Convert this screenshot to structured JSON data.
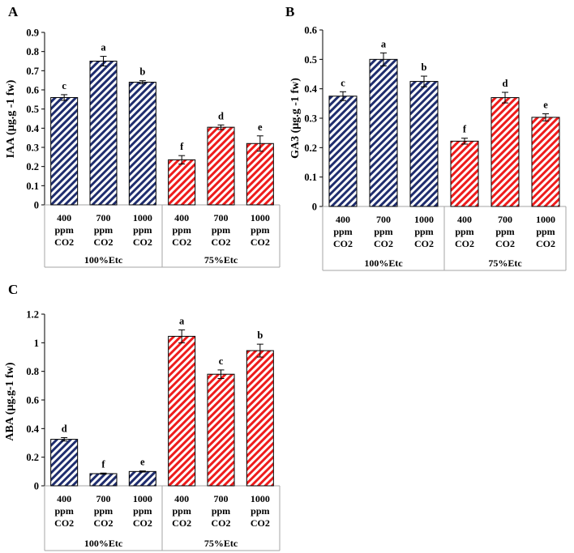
{
  "chart_data": [
    {
      "type": "bar",
      "panel_label": "A",
      "ylabel": "IAA (µg.g -1 fw)",
      "ylim": [
        0,
        0.9
      ],
      "yticks": [
        "0",
        "0.1",
        "0.2",
        "0.3",
        "0.4",
        "0.5",
        "0.6",
        "0.7",
        "0.8",
        "0.9"
      ],
      "categories": [
        [
          "400",
          "ppm",
          "CO2"
        ],
        [
          "700",
          "ppm",
          "CO2"
        ],
        [
          "1000",
          "ppm",
          "CO2"
        ],
        [
          "400",
          "ppm",
          "CO2"
        ],
        [
          "700",
          "ppm",
          "CO2"
        ],
        [
          "1000",
          "ppm",
          "CO2"
        ]
      ],
      "groups": [
        "100%Etc",
        "75%Etc"
      ],
      "values": [
        0.56,
        0.75,
        0.64,
        0.235,
        0.405,
        0.32
      ],
      "errors": [
        0.015,
        0.025,
        0.008,
        0.022,
        0.012,
        0.04
      ],
      "significance": [
        "c",
        "a",
        "b",
        "f",
        "d",
        "e"
      ],
      "series_colors": [
        "#1f2d6e",
        "#1f2d6e",
        "#1f2d6e",
        "#ee1c1c",
        "#ee1c1c",
        "#ee1c1c"
      ]
    },
    {
      "type": "bar",
      "panel_label": "B",
      "ylabel": "GA3 (µg.g -1 fw)",
      "ylim": [
        0,
        0.6
      ],
      "yticks": [
        "0",
        "0.1",
        "0.2",
        "0.3",
        "0.4",
        "0.5",
        "0.6"
      ],
      "categories": [
        [
          "400",
          "ppm",
          "CO2"
        ],
        [
          "700",
          "ppm",
          "CO2"
        ],
        [
          "1000",
          "ppm",
          "CO2"
        ],
        [
          "400",
          "ppm",
          "CO2"
        ],
        [
          "700",
          "ppm",
          "CO2"
        ],
        [
          "1000",
          "ppm",
          "CO2"
        ]
      ],
      "groups": [
        "100%Etc",
        "75%Etc"
      ],
      "values": [
        0.375,
        0.5,
        0.425,
        0.222,
        0.37,
        0.303
      ],
      "errors": [
        0.015,
        0.022,
        0.018,
        0.01,
        0.018,
        0.012
      ],
      "significance": [
        "c",
        "a",
        "b",
        "f",
        "d",
        "e"
      ],
      "series_colors": [
        "#1f2d6e",
        "#1f2d6e",
        "#1f2d6e",
        "#ee1c1c",
        "#ee1c1c",
        "#ee1c1c"
      ]
    },
    {
      "type": "bar",
      "panel_label": "C",
      "ylabel": "ABA (µg.g-1 fw)",
      "ylim": [
        0,
        1.2
      ],
      "yticks": [
        "0",
        "0.2",
        "0.4",
        "0.6",
        "0.8",
        "1",
        "1.2"
      ],
      "categories": [
        [
          "400",
          "ppm",
          "CO2"
        ],
        [
          "700",
          "ppm",
          "CO2"
        ],
        [
          "1000",
          "ppm",
          "CO2"
        ],
        [
          "400",
          "ppm",
          "CO2"
        ],
        [
          "700",
          "ppm",
          "CO2"
        ],
        [
          "1000",
          "ppm",
          "CO2"
        ]
      ],
      "groups": [
        "100%Etc",
        "75%Etc"
      ],
      "values": [
        0.325,
        0.085,
        0.1,
        1.045,
        0.78,
        0.945
      ],
      "errors": [
        0.012,
        0.004,
        0.004,
        0.045,
        0.03,
        0.045
      ],
      "significance": [
        "d",
        "f",
        "e",
        "a",
        "c",
        "b"
      ],
      "series_colors": [
        "#1f2d6e",
        "#1f2d6e",
        "#1f2d6e",
        "#ee1c1c",
        "#ee1c1c",
        "#ee1c1c"
      ]
    }
  ]
}
